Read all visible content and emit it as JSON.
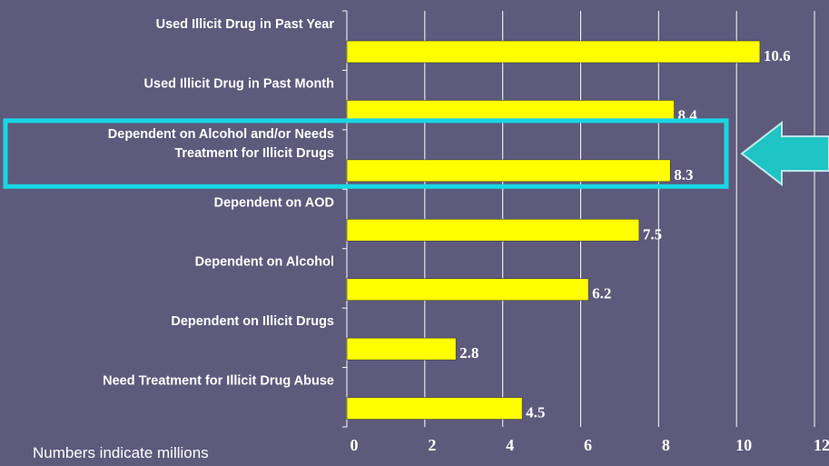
{
  "chart_data": {
    "type": "bar",
    "orientation": "horizontal",
    "categories": [
      "Used Illicit Drug in Past Year",
      "Used Illicit Drug in Past Month",
      "Dependent on Alcohol and/or Needs Treatment for Illicit Drugs",
      "Dependent on AOD",
      "Dependent on Alcohol",
      "Dependent on Illicit Drugs",
      "Need Treatment for Illicit Drug Abuse"
    ],
    "category_lines": [
      [
        "Used Illicit Drug in Past Year"
      ],
      [
        "Used Illicit Drug in Past Month"
      ],
      [
        "Dependent on Alcohol and/or Needs",
        "Treatment for Illicit Drugs"
      ],
      [
        "Dependent on AOD"
      ],
      [
        "Dependent on Alcohol"
      ],
      [
        "Dependent on Illicit Drugs"
      ],
      [
        "Need Treatment for Illicit Drug Abuse"
      ]
    ],
    "values": [
      10.6,
      8.4,
      8.3,
      7.5,
      6.2,
      2.8,
      4.5
    ],
    "value_labels": [
      "10.6",
      "8.4",
      "8.3",
      "7.5",
      "6.2",
      "2.8",
      "4.5"
    ],
    "xlim": [
      0,
      12
    ],
    "xticks": [
      "0",
      "2",
      "4",
      "6",
      "8",
      "10",
      "12"
    ],
    "grid": "vertical",
    "highlighted_category": "Dependent on Alcohol and/or Needs Treatment for Illicit Drugs"
  },
  "footnote": "Numbers indicate millions",
  "colors": {
    "background": "#5d5a7c",
    "bar": "#ffff00",
    "grid": "#ffffff",
    "highlight": "#19d6e4",
    "arrow": "#1fc4c4",
    "text": "#ffffff"
  }
}
